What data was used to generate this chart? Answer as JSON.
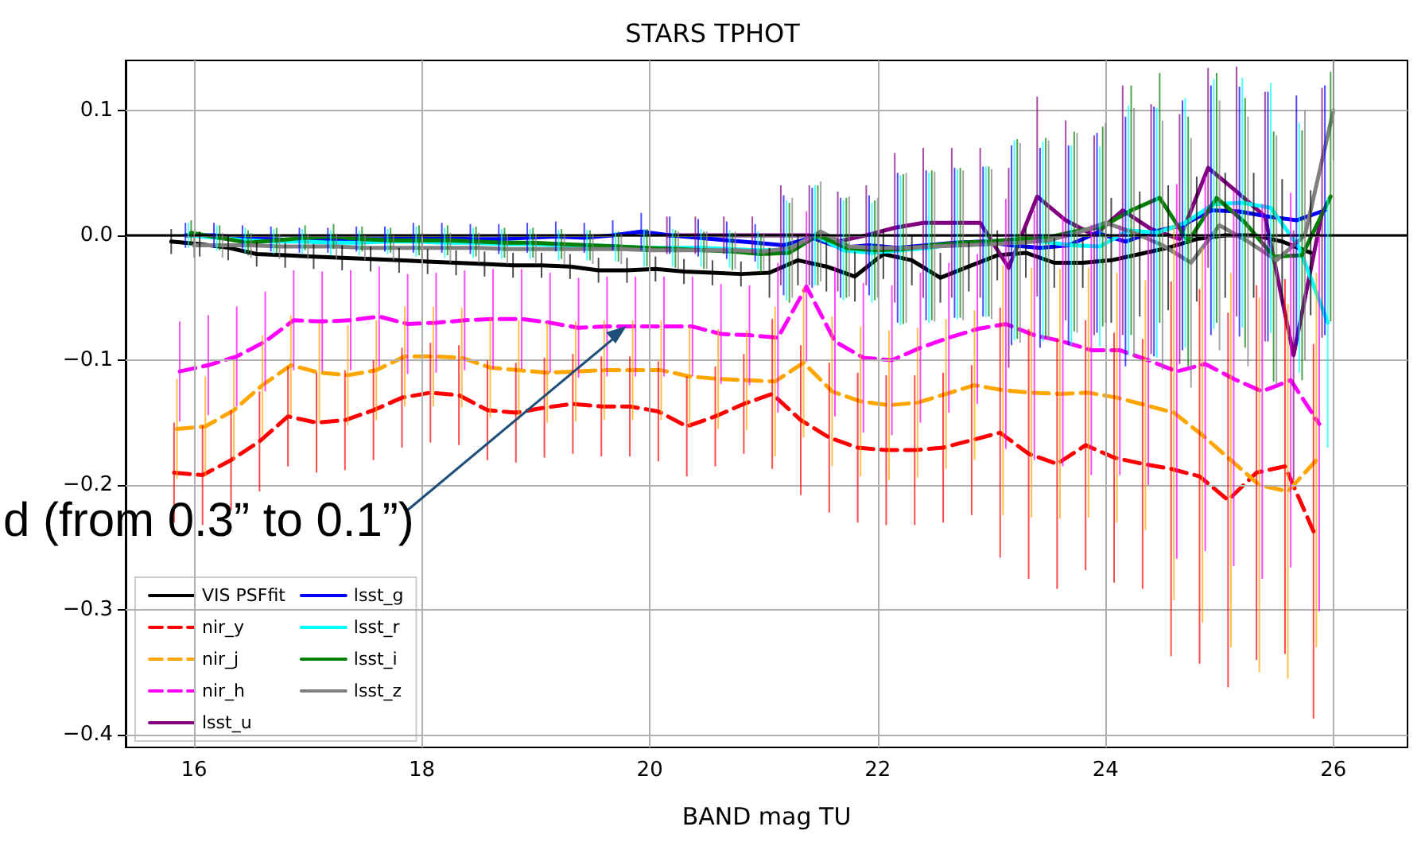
{
  "chart_data": {
    "type": "line",
    "title": "STARS TPHOT",
    "xlabel": "BAND mag TU",
    "xlim": [
      15.4,
      26.65
    ],
    "xticks": [
      16,
      18,
      20,
      22,
      24,
      26
    ],
    "ylim": [
      -0.41,
      0.14
    ],
    "yticks": [
      {
        "value": -0.4,
        "label": "−0.4"
      },
      {
        "value": -0.3,
        "label": "−0.3"
      },
      {
        "value": -0.2,
        "label": "−0.2"
      },
      {
        "value": -0.1,
        "label": "−0.1"
      },
      {
        "value": 0,
        "label": "0.0"
      },
      0.1
    ],
    "grid": true,
    "legend": "bottom left",
    "marker": "none",
    "line_style": "solid",
    "ref_lines": [
      {
        "axis": "y",
        "value": 0,
        "color": "#000000"
      }
    ],
    "annotations": [
      {
        "text": "d (from 0.3” to 0.1”)",
        "x": 19.8,
        "y": -0.073
      }
    ],
    "series": [
      {
        "name": "VIS PSFfit",
        "color": "#000000",
        "x": [
          15.8,
          16.05,
          16.3,
          16.55,
          16.8,
          17.05,
          17.3,
          17.55,
          17.8,
          18.05,
          18.3,
          18.55,
          18.8,
          19.05,
          19.3,
          19.55,
          19.8,
          20.05,
          20.3,
          20.55,
          20.8,
          21.05,
          21.3,
          21.55,
          21.8,
          22.05,
          22.3,
          22.55,
          22.8,
          23.05,
          23.3,
          23.55,
          23.8,
          24.05,
          24.3,
          24.55,
          24.8,
          25.05,
          25.3,
          25.55,
          25.8
        ],
        "values": [
          -0.005,
          -0.007,
          -0.01,
          -0.015,
          -0.016,
          -0.017,
          -0.018,
          -0.019,
          -0.02,
          -0.021,
          -0.022,
          -0.023,
          -0.024,
          -0.024,
          -0.025,
          -0.028,
          -0.028,
          -0.027,
          -0.029,
          -0.03,
          -0.031,
          -0.03,
          -0.02,
          -0.025,
          -0.033,
          -0.015,
          -0.02,
          -0.034,
          -0.025,
          -0.016,
          -0.014,
          -0.022,
          -0.022,
          -0.02,
          -0.015,
          -0.01,
          -0.003,
          0,
          0,
          -0.005,
          -0.014
        ],
        "errors": [
          0.01,
          0.01,
          0.01,
          0.01,
          0.01,
          0.01,
          0.01,
          0.01,
          0.01,
          0.01,
          0.01,
          0.01,
          0.01,
          0.01,
          0.01,
          0.01,
          0.01,
          0.01,
          0.01,
          0.01,
          0.01,
          0.02,
          0.02,
          0.02,
          0.02,
          0.02,
          0.02,
          0.02,
          0.02,
          0.02,
          0.02,
          0.02,
          0.02,
          0.05,
          0.05,
          0.05,
          0.05,
          0.05,
          0.05,
          0.05,
          0.05
        ]
      },
      {
        "name": "nir_y",
        "color": "#ff0000",
        "line_style": "dashed",
        "x": [
          15.825,
          16.075,
          16.325,
          16.575,
          16.825,
          17.075,
          17.325,
          17.575,
          17.825,
          18.075,
          18.325,
          18.575,
          18.825,
          19.075,
          19.325,
          19.575,
          19.825,
          20.075,
          20.325,
          20.575,
          20.825,
          21.075,
          21.325,
          21.575,
          21.825,
          22.075,
          22.325,
          22.575,
          22.825,
          23.075,
          23.325,
          23.575,
          23.825,
          24.075,
          24.325,
          24.575,
          24.825,
          25.075,
          25.325,
          25.575,
          25.825
        ],
        "values": [
          -0.19,
          -0.192,
          -0.18,
          -0.165,
          -0.145,
          -0.15,
          -0.148,
          -0.14,
          -0.13,
          -0.126,
          -0.128,
          -0.14,
          -0.142,
          -0.138,
          -0.135,
          -0.137,
          -0.137,
          -0.141,
          -0.153,
          -0.145,
          -0.135,
          -0.127,
          -0.148,
          -0.162,
          -0.17,
          -0.172,
          -0.172,
          -0.17,
          -0.164,
          -0.158,
          -0.175,
          -0.183,
          -0.168,
          -0.178,
          -0.183,
          -0.187,
          -0.193,
          -0.212,
          -0.19,
          -0.185,
          -0.237
        ],
        "errors": [
          0.04,
          0.04,
          0.04,
          0.04,
          0.04,
          0.04,
          0.04,
          0.04,
          0.04,
          0.04,
          0.04,
          0.04,
          0.04,
          0.04,
          0.04,
          0.04,
          0.04,
          0.04,
          0.04,
          0.04,
          0.04,
          0.06,
          0.06,
          0.06,
          0.06,
          0.06,
          0.06,
          0.06,
          0.06,
          0.1,
          0.1,
          0.1,
          0.1,
          0.1,
          0.1,
          0.15,
          0.15,
          0.15,
          0.15,
          0.15,
          0.15
        ]
      },
      {
        "name": "nir_j",
        "color": "#ffa500",
        "line_style": "dashed",
        "x": [
          15.85,
          16.1,
          16.35,
          16.6,
          16.85,
          17.1,
          17.35,
          17.6,
          17.85,
          18.1,
          18.35,
          18.6,
          18.85,
          19.1,
          19.35,
          19.6,
          19.85,
          20.1,
          20.35,
          20.6,
          20.85,
          21.1,
          21.35,
          21.6,
          21.85,
          22.1,
          22.35,
          22.6,
          22.85,
          23.1,
          23.35,
          23.6,
          23.85,
          24.1,
          24.35,
          24.6,
          24.85,
          25.1,
          25.35,
          25.6,
          25.85
        ],
        "values": [
          -0.155,
          -0.153,
          -0.14,
          -0.12,
          -0.104,
          -0.11,
          -0.112,
          -0.108,
          -0.097,
          -0.097,
          -0.098,
          -0.106,
          -0.108,
          -0.11,
          -0.109,
          -0.108,
          -0.108,
          -0.108,
          -0.113,
          -0.115,
          -0.116,
          -0.117,
          -0.102,
          -0.125,
          -0.133,
          -0.136,
          -0.134,
          -0.127,
          -0.12,
          -0.124,
          -0.126,
          -0.127,
          -0.126,
          -0.13,
          -0.136,
          -0.142,
          -0.16,
          -0.18,
          -0.2,
          -0.205,
          -0.18
        ],
        "errors": [
          0.04,
          0.04,
          0.04,
          0.04,
          0.04,
          0.04,
          0.04,
          0.04,
          0.04,
          0.04,
          0.04,
          0.04,
          0.04,
          0.04,
          0.04,
          0.04,
          0.04,
          0.04,
          0.04,
          0.04,
          0.04,
          0.06,
          0.06,
          0.06,
          0.06,
          0.06,
          0.06,
          0.06,
          0.06,
          0.1,
          0.1,
          0.1,
          0.1,
          0.1,
          0.1,
          0.15,
          0.15,
          0.15,
          0.15,
          0.15,
          0.15
        ]
      },
      {
        "name": "nir_h",
        "color": "#ff00ff",
        "line_style": "dashed",
        "x": [
          15.875,
          16.125,
          16.375,
          16.625,
          16.875,
          17.125,
          17.375,
          17.625,
          17.875,
          18.125,
          18.375,
          18.625,
          18.875,
          19.125,
          19.375,
          19.625,
          19.875,
          20.125,
          20.375,
          20.625,
          20.875,
          21.125,
          21.375,
          21.625,
          21.875,
          22.125,
          22.375,
          22.625,
          22.875,
          23.125,
          23.375,
          23.625,
          23.875,
          24.125,
          24.375,
          24.625,
          24.875,
          25.125,
          25.375,
          25.625,
          25.875
        ],
        "values": [
          -0.109,
          -0.104,
          -0.097,
          -0.085,
          -0.068,
          -0.069,
          -0.068,
          -0.065,
          -0.071,
          -0.07,
          -0.068,
          -0.067,
          -0.067,
          -0.07,
          -0.074,
          -0.073,
          -0.073,
          -0.073,
          -0.073,
          -0.079,
          -0.08,
          -0.082,
          -0.041,
          -0.085,
          -0.098,
          -0.1,
          -0.09,
          -0.082,
          -0.075,
          -0.071,
          -0.08,
          -0.085,
          -0.092,
          -0.092,
          -0.1,
          -0.109,
          -0.103,
          -0.115,
          -0.125,
          -0.116,
          -0.151
        ],
        "errors": [
          0.04,
          0.04,
          0.04,
          0.04,
          0.04,
          0.04,
          0.04,
          0.04,
          0.04,
          0.04,
          0.04,
          0.04,
          0.04,
          0.04,
          0.04,
          0.04,
          0.04,
          0.04,
          0.04,
          0.04,
          0.04,
          0.06,
          0.06,
          0.06,
          0.06,
          0.06,
          0.06,
          0.06,
          0.06,
          0.1,
          0.1,
          0.1,
          0.1,
          0.1,
          0.1,
          0.15,
          0.15,
          0.15,
          0.15,
          0.15,
          0.15
        ]
      },
      {
        "name": "lsst_u",
        "color": "#800080",
        "x": [
          20.15,
          20.4,
          20.65,
          20.9,
          21.15,
          21.4,
          21.65,
          21.9,
          22.15,
          22.4,
          22.65,
          22.9,
          23.15,
          23.4,
          23.65,
          23.9,
          24.15,
          24.4,
          24.65,
          24.9,
          25.15,
          25.4,
          25.65,
          25.9
        ],
        "values": [
          0,
          0,
          0,
          0,
          0,
          0,
          -0.005,
          0,
          0.006,
          0.01,
          0.01,
          0.01,
          -0.026,
          0.031,
          0.012,
          0,
          0.02,
          0.005,
          -0.003,
          0.054,
          0.035,
          0.015,
          -0.096,
          0.018
        ],
        "errors": [
          0.015,
          0.015,
          0.015,
          0.015,
          0.04,
          0.04,
          0.04,
          0.04,
          0.06,
          0.06,
          0.06,
          0.06,
          0.08,
          0.08,
          0.08,
          0.08,
          0.1,
          0.1,
          0.1,
          0.08,
          0.1,
          0.1,
          0.1,
          0.1
        ]
      },
      {
        "name": "lsst_g",
        "color": "#0000ff",
        "x": [
          15.925,
          16.175,
          16.425,
          16.675,
          16.925,
          17.175,
          17.425,
          17.675,
          17.925,
          18.175,
          18.425,
          18.675,
          18.925,
          19.175,
          19.425,
          19.675,
          19.925,
          20.175,
          20.425,
          20.675,
          20.925,
          21.175,
          21.425,
          21.675,
          21.925,
          22.175,
          22.425,
          22.675,
          22.925,
          23.175,
          23.425,
          23.675,
          23.925,
          24.175,
          24.425,
          24.675,
          24.925,
          25.175,
          25.425,
          25.675,
          25.925
        ],
        "values": [
          0,
          0,
          -0.002,
          -0.003,
          -0.004,
          -0.004,
          -0.003,
          -0.003,
          -0.002,
          -0.002,
          -0.003,
          -0.003,
          -0.002,
          -0.001,
          -0.002,
          0,
          0.003,
          0,
          -0.002,
          -0.004,
          -0.006,
          -0.008,
          -0.002,
          -0.01,
          -0.008,
          -0.01,
          -0.008,
          -0.006,
          -0.005,
          -0.008,
          -0.01,
          -0.008,
          0.002,
          -0.005,
          0.003,
          0.008,
          0.02,
          0.019,
          0.015,
          0.012,
          0.02
        ],
        "errors": [
          0.01,
          0.01,
          0.01,
          0.01,
          0.01,
          0.01,
          0.01,
          0.01,
          0.012,
          0.012,
          0.012,
          0.012,
          0.012,
          0.012,
          0.012,
          0.012,
          0.015,
          0.015,
          0.015,
          0.015,
          0.015,
          0.04,
          0.04,
          0.04,
          0.04,
          0.06,
          0.06,
          0.06,
          0.06,
          0.08,
          0.08,
          0.08,
          0.08,
          0.1,
          0.1,
          0.1,
          0.1,
          0.1,
          0.1,
          0.1,
          0.1
        ]
      },
      {
        "name": "lsst_r",
        "color": "#00ffff",
        "x": [
          15.95,
          16.2,
          16.45,
          16.7,
          16.95,
          17.2,
          17.45,
          17.7,
          17.95,
          18.2,
          18.45,
          18.7,
          18.95,
          19.2,
          19.45,
          19.7,
          19.95,
          20.2,
          20.45,
          20.7,
          20.95,
          21.2,
          21.45,
          21.7,
          21.95,
          22.2,
          22.45,
          22.7,
          22.95,
          23.2,
          23.45,
          23.7,
          23.95,
          24.2,
          24.45,
          24.7,
          24.95,
          25.2,
          25.45,
          25.7,
          25.95
        ],
        "values": [
          0,
          -0.002,
          -0.004,
          -0.005,
          -0.005,
          -0.006,
          -0.006,
          -0.005,
          -0.005,
          -0.006,
          -0.006,
          -0.007,
          -0.007,
          -0.008,
          -0.008,
          -0.009,
          -0.01,
          -0.01,
          -0.01,
          -0.011,
          -0.012,
          -0.012,
          0,
          -0.012,
          -0.014,
          -0.012,
          -0.01,
          -0.007,
          -0.005,
          -0.004,
          -0.005,
          -0.008,
          -0.009,
          0.004,
          0.002,
          0.01,
          0.025,
          0.026,
          0.022,
          -0.01,
          -0.07
        ],
        "errors": [
          0.01,
          0.01,
          0.01,
          0.01,
          0.01,
          0.01,
          0.01,
          0.01,
          0.012,
          0.012,
          0.012,
          0.012,
          0.012,
          0.012,
          0.012,
          0.012,
          0.015,
          0.015,
          0.015,
          0.015,
          0.015,
          0.04,
          0.04,
          0.04,
          0.04,
          0.06,
          0.06,
          0.06,
          0.06,
          0.08,
          0.08,
          0.08,
          0.08,
          0.1,
          0.1,
          0.1,
          0.1,
          0.1,
          0.1,
          0.1,
          0.1
        ]
      },
      {
        "name": "lsst_i",
        "color": "#008000",
        "x": [
          15.975,
          16.225,
          16.475,
          16.725,
          16.975,
          17.225,
          17.475,
          17.725,
          17.975,
          18.225,
          18.475,
          18.725,
          18.975,
          19.225,
          19.475,
          19.725,
          19.975,
          20.225,
          20.475,
          20.725,
          20.975,
          21.225,
          21.475,
          21.725,
          21.975,
          22.225,
          22.475,
          22.725,
          22.975,
          23.225,
          23.475,
          23.725,
          23.975,
          24.225,
          24.475,
          24.725,
          24.975,
          25.225,
          25.475,
          25.725,
          25.975
        ],
        "values": [
          0.002,
          -0.002,
          -0.006,
          -0.004,
          -0.002,
          -0.001,
          -0.003,
          -0.004,
          -0.004,
          -0.004,
          -0.005,
          -0.006,
          -0.006,
          -0.007,
          -0.008,
          -0.009,
          -0.01,
          -0.011,
          -0.012,
          -0.013,
          -0.015,
          -0.014,
          0,
          -0.01,
          -0.012,
          -0.011,
          -0.008,
          -0.006,
          -0.005,
          -0.003,
          -0.002,
          0.003,
          0.007,
          0.02,
          0.03,
          -0.005,
          0.03,
          0.01,
          -0.017,
          -0.016,
          0.031
        ],
        "errors": [
          0.01,
          0.01,
          0.01,
          0.01,
          0.01,
          0.01,
          0.01,
          0.01,
          0.012,
          0.012,
          0.012,
          0.012,
          0.012,
          0.012,
          0.012,
          0.012,
          0.015,
          0.015,
          0.015,
          0.015,
          0.015,
          0.04,
          0.04,
          0.04,
          0.04,
          0.06,
          0.06,
          0.06,
          0.06,
          0.08,
          0.08,
          0.08,
          0.08,
          0.1,
          0.1,
          0.1,
          0.1,
          0.1,
          0.1,
          0.1,
          0.1
        ]
      },
      {
        "name": "lsst_z",
        "color": "#808080",
        "x": [
          16,
          16.25,
          16.5,
          16.75,
          17,
          17.25,
          17.5,
          17.75,
          18,
          18.25,
          18.5,
          18.75,
          19,
          19.25,
          19.5,
          19.75,
          20,
          20.25,
          20.5,
          20.75,
          21,
          21.25,
          21.5,
          21.75,
          22,
          22.25,
          22.5,
          22.75,
          23,
          23.25,
          23.5,
          23.75,
          24,
          24.25,
          24.5,
          24.75,
          25,
          25.25,
          25.5,
          25.75,
          26
        ],
        "values": [
          -0.008,
          -0.008,
          -0.008,
          -0.009,
          -0.009,
          -0.009,
          -0.01,
          -0.01,
          -0.01,
          -0.01,
          -0.01,
          -0.011,
          -0.011,
          -0.011,
          -0.011,
          -0.011,
          -0.012,
          -0.012,
          -0.012,
          -0.012,
          -0.013,
          -0.01,
          0.003,
          -0.009,
          -0.01,
          -0.01,
          -0.009,
          -0.008,
          -0.007,
          -0.006,
          -0.004,
          0.002,
          0.01,
          0.002,
          -0.008,
          -0.022,
          0.008,
          -0.005,
          -0.02,
          0,
          0.1
        ],
        "errors": [
          0.01,
          0.01,
          0.01,
          0.01,
          0.01,
          0.01,
          0.01,
          0.01,
          0.012,
          0.012,
          0.012,
          0.012,
          0.012,
          0.012,
          0.012,
          0.012,
          0.015,
          0.015,
          0.015,
          0.015,
          0.015,
          0.04,
          0.04,
          0.04,
          0.04,
          0.06,
          0.06,
          0.06,
          0.06,
          0.08,
          0.08,
          0.08,
          0.08,
          0.1,
          0.1,
          0.1,
          0.1,
          0.1,
          0.1,
          0.1,
          0.04
        ]
      }
    ]
  }
}
